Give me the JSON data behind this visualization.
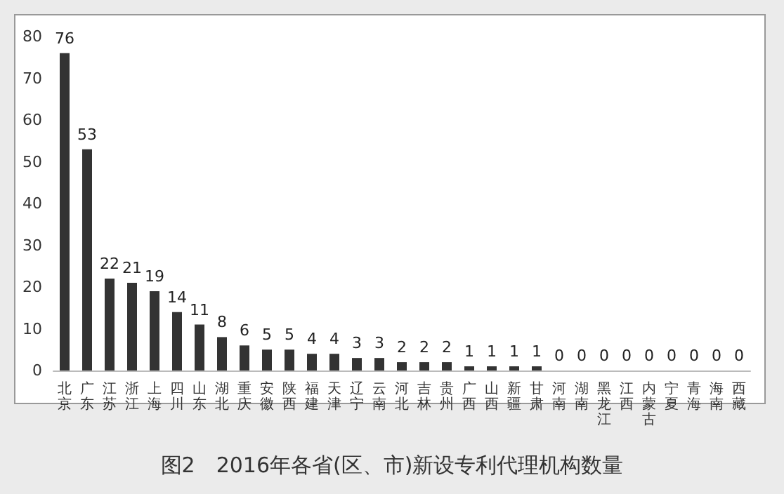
{
  "chart_data": {
    "type": "bar",
    "title": "图2　2016年各省(区、市)新设专利代理机构数量",
    "categories": [
      "北京",
      "广东",
      "江苏",
      "浙江",
      "上海",
      "四川",
      "山东",
      "湖北",
      "重庆",
      "安徽",
      "陕西",
      "福建",
      "天津",
      "辽宁",
      "云南",
      "河北",
      "吉林",
      "贵州",
      "广西",
      "山西",
      "新疆",
      "甘肃",
      "河南",
      "湖南",
      "黑龙江",
      "江西",
      "内蒙古",
      "宁夏",
      "青海",
      "海南",
      "西藏"
    ],
    "values": [
      76,
      53,
      22,
      21,
      19,
      14,
      11,
      8,
      6,
      5,
      5,
      4,
      4,
      3,
      3,
      2,
      2,
      2,
      1,
      1,
      1,
      1,
      0,
      0,
      0,
      0,
      0,
      0,
      0,
      0,
      0
    ],
    "color": "#333333",
    "ylim": [
      0,
      80
    ],
    "yticks": [
      0,
      10,
      20,
      30,
      40,
      50,
      60,
      70,
      80
    ],
    "grid": false,
    "data_labels": true
  }
}
